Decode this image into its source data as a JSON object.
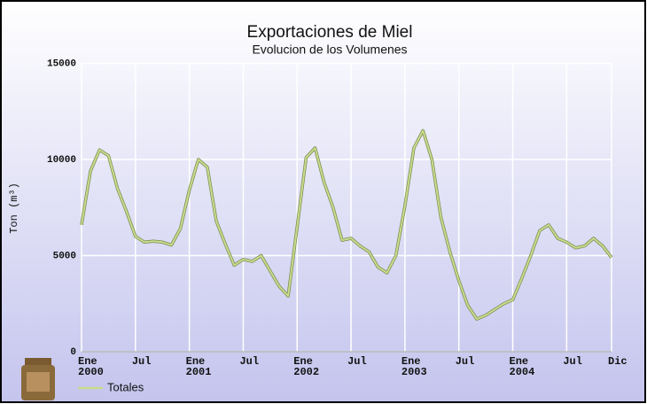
{
  "chart_data": {
    "type": "line",
    "title": "Exportaciones de Miel",
    "subtitle": "Evolucion de los Volumenes",
    "y_label": "Ton (m³)",
    "categories": [
      "Ene 2000",
      null,
      null,
      null,
      null,
      null,
      "Jul",
      null,
      null,
      null,
      null,
      null,
      "Ene 2001",
      null,
      null,
      null,
      null,
      null,
      "Jul",
      null,
      null,
      null,
      null,
      null,
      "Ene 2002",
      null,
      null,
      null,
      null,
      null,
      "Jul",
      null,
      null,
      null,
      null,
      null,
      "Ene 2003",
      null,
      null,
      null,
      null,
      null,
      "Jul",
      null,
      null,
      null,
      null,
      null,
      "Ene 2004",
      null,
      null,
      null,
      null,
      null,
      "Jul",
      null,
      null,
      null,
      null,
      "Dic"
    ],
    "series": [
      {
        "name": "Totales",
        "color": "#c8dc8c",
        "values": [
          6600,
          9400,
          10500,
          10200,
          8500,
          7300,
          6000,
          5700,
          5750,
          5700,
          5550,
          6400,
          8400,
          10000,
          9600,
          6800,
          5600,
          4500,
          4800,
          4700,
          5000,
          4200,
          3400,
          2900,
          6500,
          10100,
          10600,
          8800,
          7500,
          5800,
          5900,
          5500,
          5200,
          4400,
          4100,
          5000,
          7600,
          10600,
          11500,
          10000,
          7000,
          5200,
          3700,
          2400,
          1700,
          1900,
          2200,
          2500,
          2700,
          3800,
          5000,
          6300,
          6600,
          5900,
          5700,
          5400,
          5500,
          5900,
          5500,
          4900
        ]
      }
    ],
    "ylim": [
      0,
      15000
    ],
    "yticks": [
      0,
      5000,
      10000,
      15000
    ],
    "grid": true
  }
}
